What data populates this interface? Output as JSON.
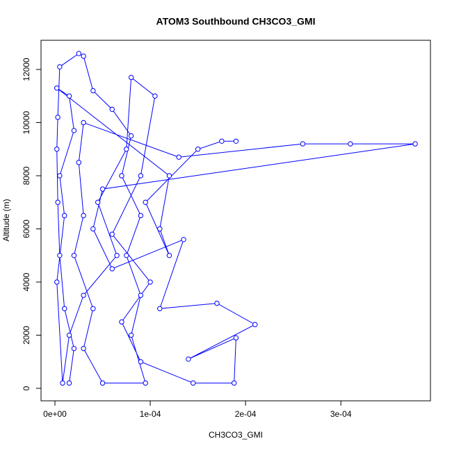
{
  "chart_data": {
    "type": "scatter",
    "lines": true,
    "title": "ATOM3 Southbound CH3CO3_GMI",
    "x_label": "CH3CO3_GMI",
    "y_label": "Altitude (m)",
    "xlim": [
      -1.46e-05,
      0.000394
    ],
    "ylim": [
      -470,
      13098
    ],
    "xticks": [
      {
        "value": 0,
        "label": "0e+00"
      },
      {
        "value": 0.0001,
        "label": "1e-04"
      },
      {
        "value": 0.0002,
        "label": "2e-04"
      },
      {
        "value": 0.0003,
        "label": "3e-04"
      }
    ],
    "yticks": [
      0,
      2000,
      4000,
      6000,
      8000,
      10000,
      12000
    ],
    "series": [
      {
        "color": "#0000ff",
        "x": [
          1.5e-05,
          2e-05,
          1e-05,
          5e-06,
          3e-06,
          2e-06,
          3e-06,
          5e-06,
          2.5e-05,
          3e-05,
          4e-05,
          6e-05,
          8e-05,
          7e-05,
          9e-05,
          7.5e-05,
          9e-05,
          8e-05,
          9.5e-05,
          5e-05,
          3e-05,
          4e-05,
          2e-05,
          3e-05,
          2.5e-05,
          3e-05,
          0.00013,
          0.00026,
          0.00031,
          0.000378,
          5e-05,
          4e-05,
          6e-05,
          0.000135,
          0.00011,
          0.00017,
          0.00021,
          0.00014,
          0.00019,
          0.000188,
          0.000145,
          9e-05,
          7e-05,
          0.0001,
          6e-05,
          9e-05,
          0.000105,
          8e-05,
          7.5e-05,
          4.5e-05,
          6.5e-05,
          3e-05,
          1.5e-05,
          8e-06,
          2e-06,
          1e-05,
          5e-06,
          2e-05,
          1.5e-05,
          2e-06,
          0.00012,
          0.00011,
          0.00012,
          9.5e-05,
          0.00015,
          0.000175,
          0.00019
        ],
        "y": [
          200,
          1500,
          3000,
          5000,
          7000,
          9000,
          10200,
          12100,
          12600,
          12500,
          11200,
          10500,
          9500,
          8000,
          6500,
          5000,
          3500,
          2000,
          200,
          200,
          1500,
          3000,
          5000,
          6500,
          8500,
          10000,
          8700,
          9200,
          9200,
          9200,
          7500,
          6000,
          4500,
          5600,
          3000,
          3200,
          2400,
          1100,
          1900,
          200,
          200,
          1000,
          2500,
          4000,
          5800,
          8000,
          11000,
          11700,
          9000,
          7000,
          5000,
          3500,
          2000,
          200,
          4000,
          6500,
          8000,
          9700,
          11000,
          11300,
          8000,
          6000,
          5000,
          7000,
          9000,
          9300,
          9300
        ]
      }
    ]
  }
}
